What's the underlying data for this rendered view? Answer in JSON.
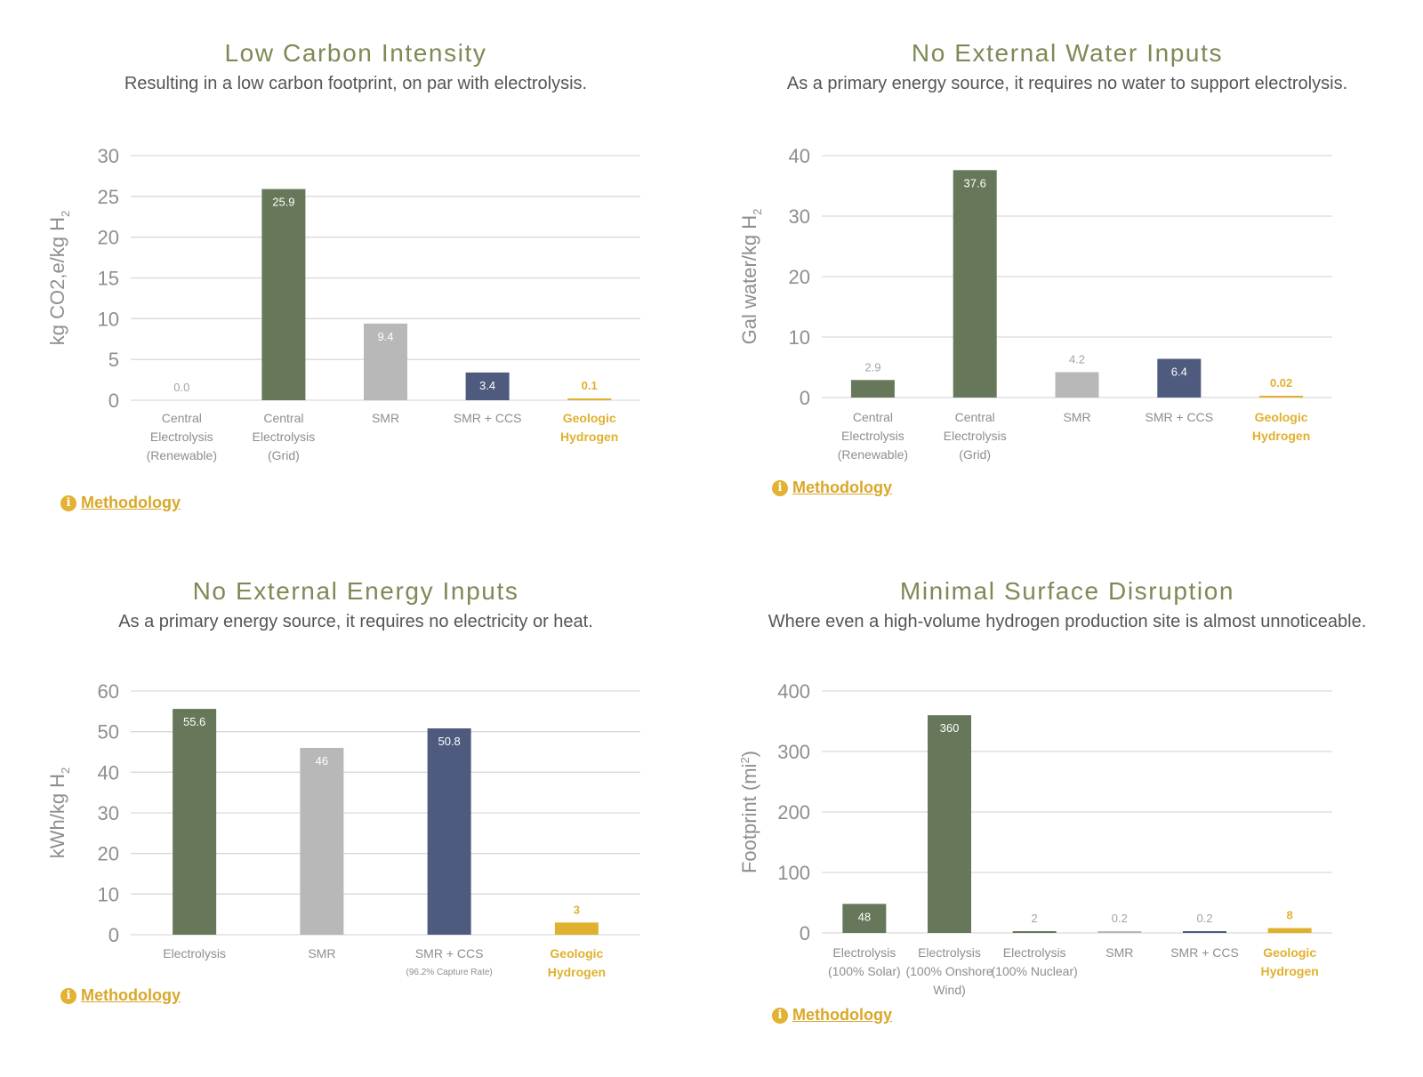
{
  "colors": {
    "green": "#667859",
    "gray": "#b8b8b8",
    "navy": "#4e5a7e",
    "gold": "#e0b12f",
    "title": "#7d8a56",
    "grid": "#d9d9d9",
    "axis_text": "#8e8e8e"
  },
  "icons": {
    "methodology": "info-icon"
  },
  "chart_data": [
    {
      "type": "bar",
      "title": "Low Carbon Intensity",
      "subtitle": "Resulting in a low carbon footprint, on par with electrolysis.",
      "ylabel": "kg CO2,e/kg H",
      "ylabel_sub": "2",
      "ylim": [
        0,
        30
      ],
      "yticks": [
        "0",
        "5",
        "10",
        "15",
        "20",
        "25",
        "30"
      ],
      "grid": true,
      "categories": [
        {
          "lines": [
            "Central",
            "Electrolysis",
            "(Renewable)"
          ],
          "note": "",
          "highlight": false
        },
        {
          "lines": [
            "Central",
            "Electrolysis",
            "(Grid)"
          ],
          "note": "",
          "highlight": false
        },
        {
          "lines": [
            "SMR"
          ],
          "note": "",
          "highlight": false
        },
        {
          "lines": [
            "SMR + CCS"
          ],
          "note": "",
          "highlight": false
        },
        {
          "lines": [
            "Geologic",
            "Hydrogen"
          ],
          "note": "",
          "highlight": true
        }
      ],
      "values": [
        0.0,
        25.9,
        9.4,
        3.4,
        0.1
      ],
      "labels": [
        "0.0",
        "25.9",
        "9.4",
        "3.4",
        "0.1"
      ],
      "bar_colors": [
        "green",
        "green",
        "gray",
        "navy",
        "gold"
      ],
      "methodology": "Methodology"
    },
    {
      "type": "bar",
      "title": "No External Water Inputs",
      "subtitle": "As a primary energy source, it requires no water to support electrolysis.",
      "ylabel": "Gal water/kg H",
      "ylabel_sub": "2",
      "ylim": [
        0,
        40
      ],
      "yticks": [
        "0",
        "10",
        "20",
        "30",
        "40"
      ],
      "grid": true,
      "categories": [
        {
          "lines": [
            "Central",
            "Electrolysis",
            "(Renewable)"
          ],
          "note": "",
          "highlight": false
        },
        {
          "lines": [
            "Central",
            "Electrolysis",
            "(Grid)"
          ],
          "note": "",
          "highlight": false
        },
        {
          "lines": [
            "SMR"
          ],
          "note": "",
          "highlight": false
        },
        {
          "lines": [
            "SMR + CCS"
          ],
          "note": "",
          "highlight": false
        },
        {
          "lines": [
            "Geologic",
            "Hydrogen"
          ],
          "note": "",
          "highlight": true
        }
      ],
      "values": [
        2.9,
        37.6,
        4.2,
        6.4,
        0.02
      ],
      "labels": [
        "2.9",
        "37.6",
        "4.2",
        "6.4",
        "0.02"
      ],
      "bar_colors": [
        "green",
        "green",
        "gray",
        "navy",
        "gold"
      ],
      "methodology": "Methodology"
    },
    {
      "type": "bar",
      "title": "No External Energy Inputs",
      "subtitle": "As a primary energy source, it requires no electricity or heat.",
      "ylabel": "kWh/kg H",
      "ylabel_sub": "2",
      "ylim": [
        0,
        60
      ],
      "yticks": [
        "0",
        "10",
        "20",
        "30",
        "40",
        "50",
        "60"
      ],
      "grid": true,
      "categories": [
        {
          "lines": [
            "Electrolysis"
          ],
          "note": "",
          "highlight": false
        },
        {
          "lines": [
            "SMR"
          ],
          "note": "",
          "highlight": false
        },
        {
          "lines": [
            "SMR + CCS"
          ],
          "note": "(96.2% Capture Rate)",
          "highlight": false
        },
        {
          "lines": [
            "Geologic",
            "Hydrogen"
          ],
          "note": "",
          "highlight": true
        }
      ],
      "values": [
        55.6,
        46,
        50.8,
        3
      ],
      "labels": [
        "55.6",
        "46",
        "50.8",
        "3"
      ],
      "bar_colors": [
        "green",
        "gray",
        "navy",
        "gold"
      ],
      "methodology": "Methodology"
    },
    {
      "type": "bar",
      "title": "Minimal Surface Disruption",
      "subtitle": "Where even a high-volume hydrogen production site is almost unnoticeable.",
      "ylabel": "Footprint (mi",
      "ylabel_sup": "2",
      "ylabel_end": ")",
      "ylim": [
        0,
        400
      ],
      "yticks": [
        "0",
        "100",
        "200",
        "300",
        "400"
      ],
      "grid": true,
      "categories": [
        {
          "lines": [
            "Electrolysis",
            "(100% Solar)"
          ],
          "note": "",
          "highlight": false
        },
        {
          "lines": [
            "Electrolysis",
            "(100% Onshore",
            "Wind)"
          ],
          "note": "",
          "highlight": false
        },
        {
          "lines": [
            "Electrolysis",
            "(100% Nuclear)"
          ],
          "note": "",
          "highlight": false
        },
        {
          "lines": [
            "SMR"
          ],
          "note": "",
          "highlight": false
        },
        {
          "lines": [
            "SMR + CCS"
          ],
          "note": "",
          "highlight": false
        },
        {
          "lines": [
            "Geologic",
            "Hydrogen"
          ],
          "note": "",
          "highlight": true
        }
      ],
      "values": [
        48,
        360,
        2,
        0.2,
        0.2,
        8
      ],
      "labels": [
        "48",
        "360",
        "2",
        "0.2",
        "0.2",
        "8"
      ],
      "bar_colors": [
        "green",
        "green",
        "green",
        "gray",
        "navy",
        "gold"
      ],
      "methodology": "Methodology"
    }
  ]
}
